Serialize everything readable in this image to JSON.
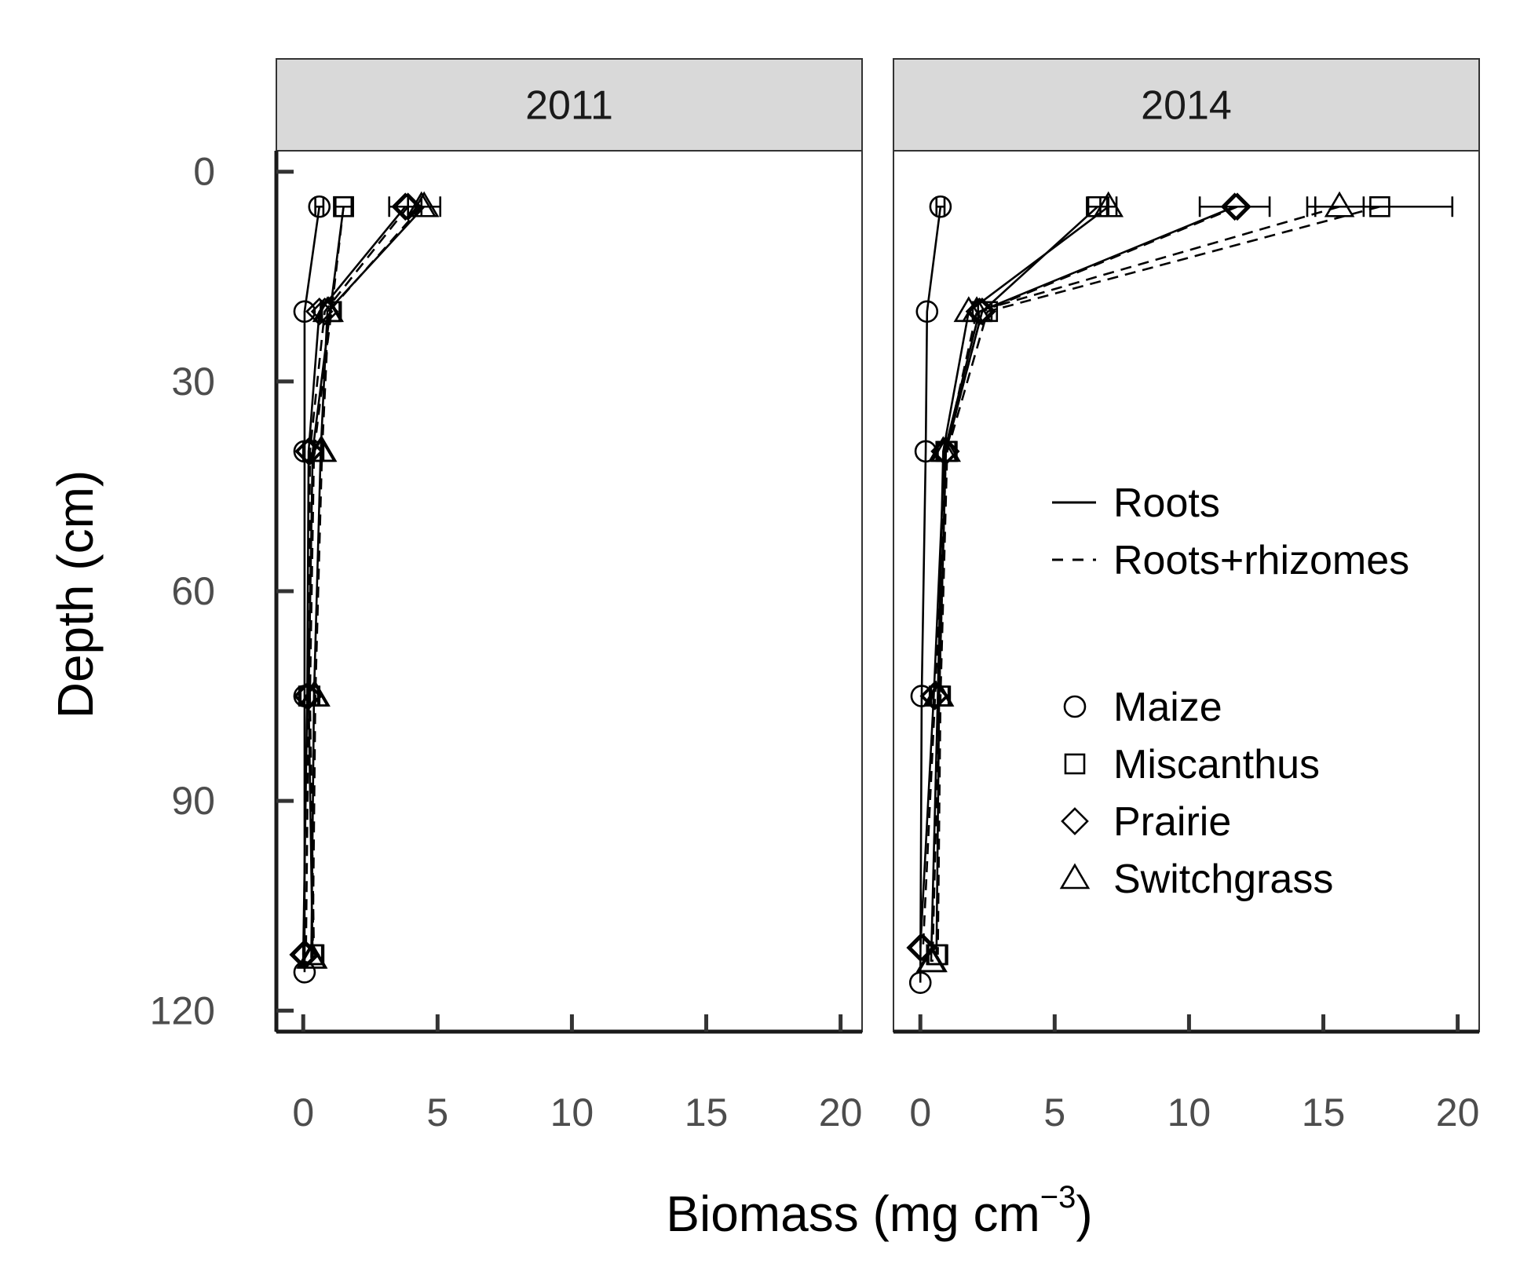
{
  "chart_data": {
    "type": "line",
    "xlabel": "Biomass (mg cm",
    "xlabel_sup": "−3",
    "xlabel_close": ")",
    "ylabel": "Depth (cm)",
    "xlim": [
      -1,
      20.8
    ],
    "ylim": [
      -3,
      123
    ],
    "y_reversed": true,
    "xticks": [
      0,
      5,
      10,
      15,
      20
    ],
    "yticks": [
      0,
      30,
      60,
      90,
      120
    ],
    "grid": false,
    "legend_position": "right",
    "legend_lines": [
      {
        "label": "Roots",
        "dash": "solid"
      },
      {
        "label": "Roots+rhizomes",
        "dash": "dashed"
      }
    ],
    "legend_shapes": [
      {
        "label": "Maize",
        "shape": "circle"
      },
      {
        "label": "Miscanthus",
        "shape": "square"
      },
      {
        "label": "Prairie",
        "shape": "diamond"
      },
      {
        "label": "Switchgrass",
        "shape": "triangle"
      }
    ],
    "panels": [
      {
        "title": "2011",
        "series": [
          {
            "crop": "Maize",
            "shape": "circle",
            "dash": "solid",
            "points": [
              [
                0.6,
                5
              ],
              [
                0.05,
                20
              ],
              [
                0.05,
                40
              ],
              [
                0.05,
                75
              ],
              [
                0.05,
                114.5
              ]
            ],
            "errors": [
              0.15,
              0,
              0,
              0,
              0
            ]
          },
          {
            "crop": "Miscanthus",
            "shape": "square",
            "dash": "solid",
            "points": [
              [
                1.5,
                5
              ],
              [
                1.0,
                20
              ],
              [
                0.35,
                40
              ],
              [
                0.2,
                75
              ],
              [
                0.35,
                112
              ]
            ],
            "errors": [
              0.3,
              0,
              0,
              0,
              0
            ]
          },
          {
            "crop": "Miscanthus",
            "shape": "square",
            "dash": "dashed",
            "points": [
              [
                1.5,
                5
              ],
              [
                1.05,
                20
              ],
              [
                0.4,
                40
              ],
              [
                0.25,
                75
              ],
              [
                0.4,
                112
              ]
            ],
            "errors": [
              0,
              0,
              0,
              0,
              0
            ]
          },
          {
            "crop": "Prairie",
            "shape": "diamond",
            "dash": "solid",
            "points": [
              [
                3.8,
                5
              ],
              [
                0.6,
                20
              ],
              [
                0.2,
                40
              ],
              [
                0.15,
                75
              ],
              [
                0.0,
                112
              ]
            ],
            "errors": [
              0.6,
              0,
              0,
              0,
              0
            ]
          },
          {
            "crop": "Prairie",
            "shape": "diamond",
            "dash": "dashed",
            "points": [
              [
                3.9,
                5
              ],
              [
                0.8,
                20
              ],
              [
                0.25,
                40
              ],
              [
                0.2,
                75
              ],
              [
                0.1,
                112
              ]
            ],
            "errors": [
              0,
              0,
              0,
              0,
              0
            ]
          },
          {
            "crop": "Switchgrass",
            "shape": "triangle",
            "dash": "solid",
            "points": [
              [
                4.5,
                5
              ],
              [
                0.9,
                20
              ],
              [
                0.65,
                40
              ],
              [
                0.4,
                75
              ],
              [
                0.3,
                112.5
              ]
            ],
            "errors": [
              0.6,
              0,
              0,
              0,
              0
            ]
          },
          {
            "crop": "Switchgrass",
            "shape": "triangle",
            "dash": "dashed",
            "points": [
              [
                4.4,
                5
              ],
              [
                0.95,
                20
              ],
              [
                0.7,
                40
              ],
              [
                0.45,
                75
              ],
              [
                0.35,
                112.5
              ]
            ],
            "errors": [
              0,
              0,
              0,
              0,
              0
            ]
          }
        ]
      },
      {
        "title": "2014",
        "series": [
          {
            "crop": "Maize",
            "shape": "circle",
            "dash": "solid",
            "points": [
              [
                0.75,
                5
              ],
              [
                0.25,
                20
              ],
              [
                0.2,
                40
              ],
              [
                0.05,
                75
              ],
              [
                0.0,
                116
              ]
            ],
            "errors": [
              0.15,
              0,
              0,
              0,
              0
            ]
          },
          {
            "crop": "Miscanthus",
            "shape": "square",
            "dash": "solid",
            "points": [
              [
                6.6,
                5
              ],
              [
                2.3,
                20
              ],
              [
                0.95,
                40
              ],
              [
                0.7,
                75
              ],
              [
                0.6,
                112
              ]
            ],
            "errors": [
              0.4,
              0,
              0,
              0,
              0
            ]
          },
          {
            "crop": "Miscanthus",
            "shape": "square",
            "dash": "dashed",
            "points": [
              [
                17.1,
                5
              ],
              [
                2.5,
                20
              ],
              [
                1.0,
                40
              ],
              [
                0.75,
                75
              ],
              [
                0.65,
                112
              ]
            ],
            "errors": [
              2.7,
              0,
              0,
              0,
              0
            ]
          },
          {
            "crop": "Prairie",
            "shape": "diamond",
            "dash": "solid",
            "points": [
              [
                11.7,
                5
              ],
              [
                2.2,
                20
              ],
              [
                0.9,
                40
              ],
              [
                0.5,
                75
              ],
              [
                0.0,
                111
              ]
            ],
            "errors": [
              1.3,
              0,
              0,
              0,
              0
            ]
          },
          {
            "crop": "Prairie",
            "shape": "diamond",
            "dash": "dashed",
            "points": [
              [
                11.8,
                5
              ],
              [
                2.3,
                20
              ],
              [
                0.95,
                40
              ],
              [
                0.55,
                75
              ],
              [
                0.1,
                111
              ]
            ],
            "errors": [
              0,
              0,
              0,
              0,
              0
            ]
          },
          {
            "crop": "Switchgrass",
            "shape": "triangle",
            "dash": "solid",
            "points": [
              [
                7.0,
                5
              ],
              [
                1.8,
                20
              ],
              [
                0.85,
                40
              ],
              [
                0.65,
                75
              ],
              [
                0.4,
                113
              ]
            ],
            "errors": [
              0.3,
              0,
              0,
              0,
              0
            ]
          },
          {
            "crop": "Switchgrass",
            "shape": "triangle",
            "dash": "dashed",
            "points": [
              [
                15.6,
                5
              ],
              [
                2.1,
                20
              ],
              [
                0.95,
                40
              ],
              [
                0.7,
                75
              ],
              [
                0.45,
                113
              ]
            ],
            "errors": [
              0.9,
              0,
              0,
              0,
              0
            ]
          }
        ]
      }
    ]
  }
}
